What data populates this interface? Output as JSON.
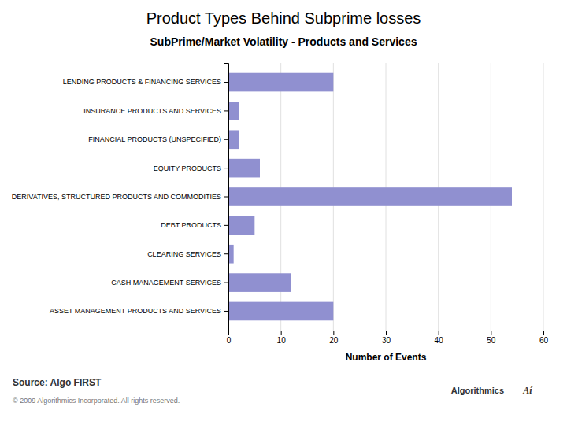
{
  "chart_data": {
    "type": "bar",
    "orientation": "horizontal",
    "title": "Product Types Behind Subprime losses",
    "subtitle": "SubPrime/Market Volatility - Products and Services",
    "x_label": "Number of Events",
    "categories": [
      "LENDING PRODUCTS & FINANCING SERVICES",
      "INSURANCE PRODUCTS AND SERVICES",
      "FINANCIAL PRODUCTS (UNSPECIFIED)",
      "EQUITY PRODUCTS",
      "DERIVATIVES, STRUCTURED PRODUCTS AND COMMODITIES",
      "DEBT PRODUCTS",
      "CLEARING SERVICES",
      "CASH MANAGEMENT SERVICES",
      "ASSET MANAGEMENT PRODUCTS AND SERVICES"
    ],
    "values": [
      20,
      2,
      2,
      6,
      54,
      5,
      1,
      12,
      20
    ],
    "color": "#9090d0",
    "xlim": [
      0,
      60
    ],
    "xticks": [
      0,
      10,
      20,
      30,
      40,
      50,
      60
    ],
    "grid": true,
    "annotations": [
      "Source: Algo FIRST",
      "© 2009 Algorithmics Incorporated. All rights reserved.",
      "Algorithmics",
      "Aí"
    ]
  }
}
